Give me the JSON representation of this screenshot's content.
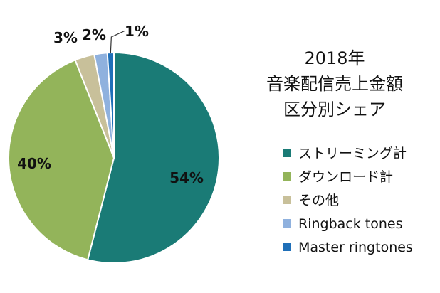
{
  "chart_data": {
    "type": "pie",
    "title_lines": [
      "2018年",
      "音楽配信売上金額",
      "区分別シェア"
    ],
    "legend_position": "right",
    "slices": [
      {
        "label": "ストリーミング計",
        "value": 54,
        "value_label": "54%",
        "color": "#1a7b76"
      },
      {
        "label": "ダウンロード計",
        "value": 40,
        "value_label": "40%",
        "color": "#93b45a"
      },
      {
        "label": "その他",
        "value": 3,
        "value_label": "3%",
        "color": "#c8c09a"
      },
      {
        "label": "Ringback tones",
        "value": 2,
        "value_label": "2%",
        "color": "#8fb1de"
      },
      {
        "label": "Master ringtones",
        "value": 1,
        "value_label": "1%",
        "color": "#1f6fb8"
      }
    ]
  }
}
